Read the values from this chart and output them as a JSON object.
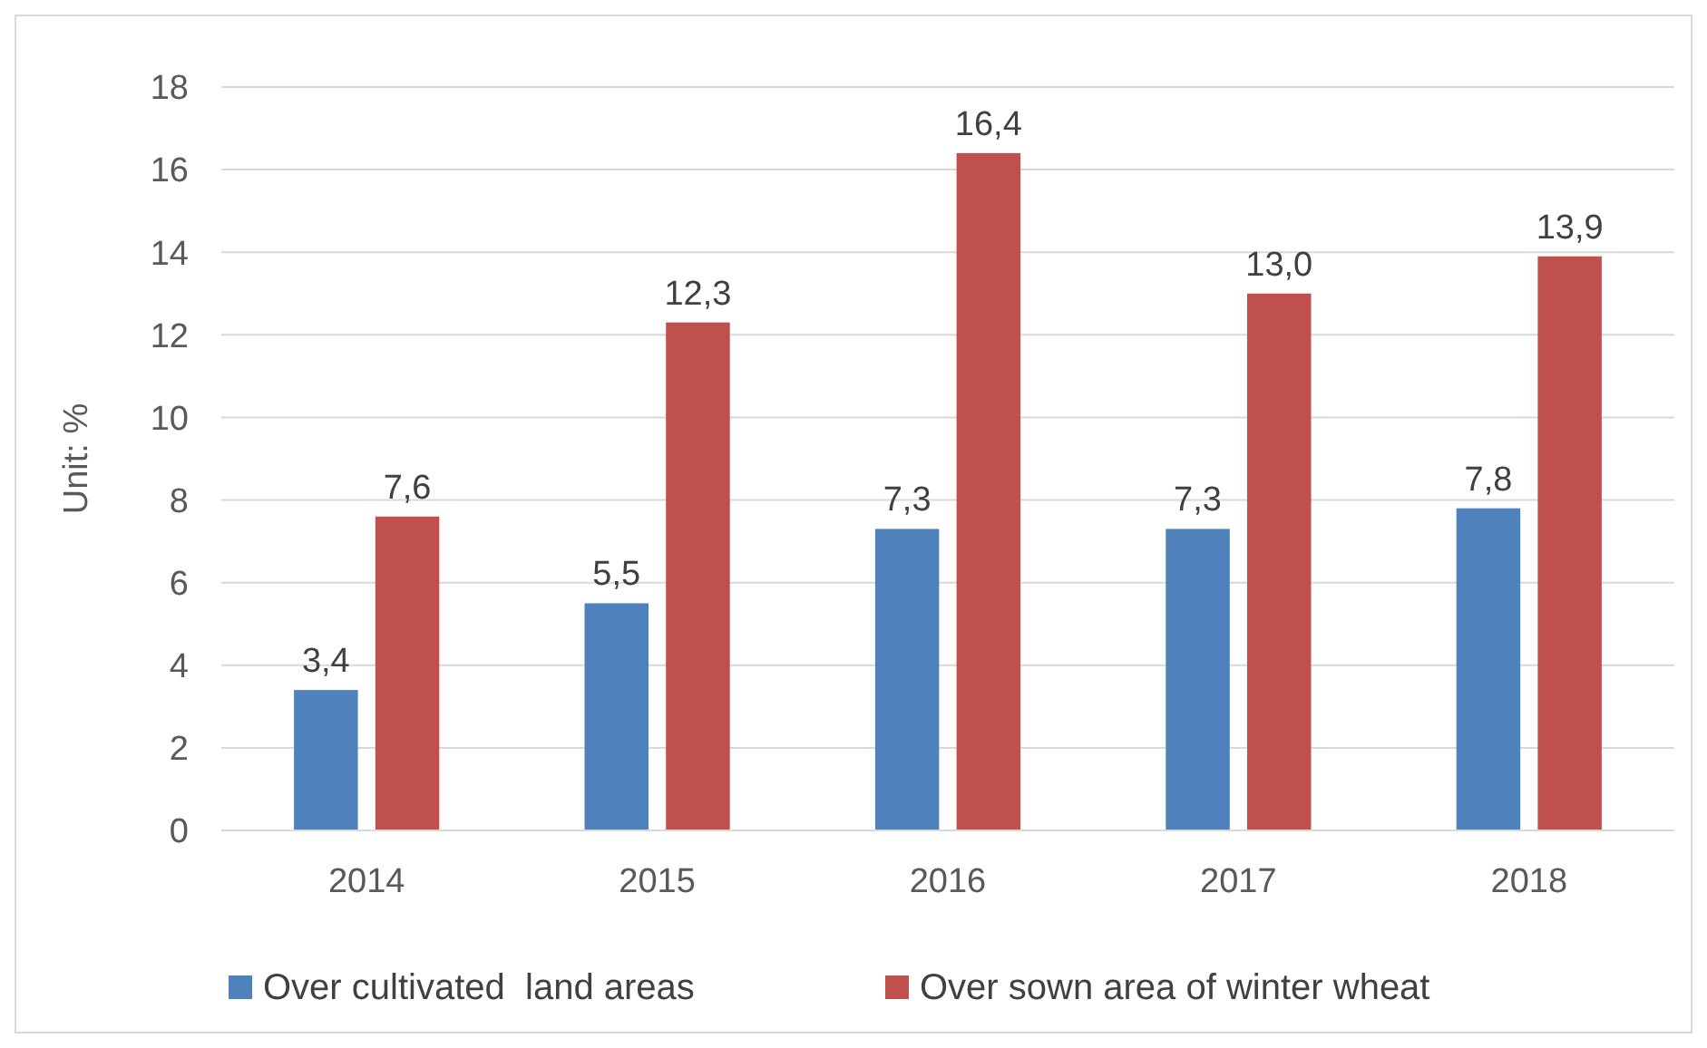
{
  "chart_data": {
    "type": "bar",
    "ylabel": "Unit: %",
    "categories": [
      "2014",
      "2015",
      "2016",
      "2017",
      "2018"
    ],
    "series": [
      {
        "name": "Over cultivated  land areas",
        "color": "#4f81bd",
        "values": [
          3.4,
          5.5,
          7.3,
          7.3,
          7.8
        ],
        "value_labels": [
          "3,4",
          "5,5",
          "7,3",
          "7,3",
          "7,8"
        ]
      },
      {
        "name": "Over sown area of winter wheat",
        "color": "#c0504d",
        "values": [
          7.6,
          12.3,
          16.4,
          13.0,
          13.9
        ],
        "value_labels": [
          "7,6",
          "12,3",
          "16,4",
          "13,0",
          "13,9"
        ]
      }
    ],
    "ylim": [
      0,
      18
    ],
    "yticks": [
      0,
      2,
      4,
      6,
      8,
      10,
      12,
      14,
      16,
      18
    ],
    "grid": "y",
    "legend": "bottom"
  }
}
